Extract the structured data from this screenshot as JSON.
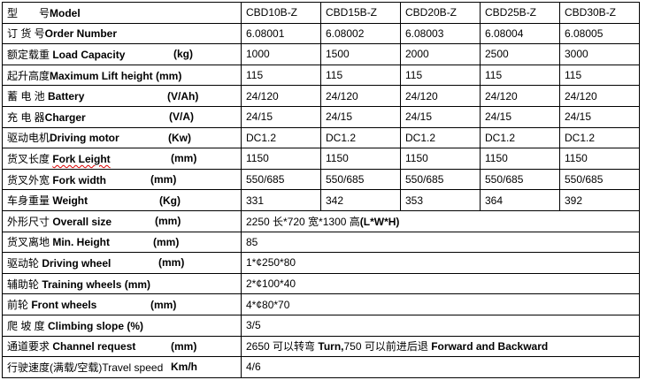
{
  "models": [
    "CBD10B-Z",
    "CBD15B-Z",
    "CBD20B-Z",
    "CBD25B-Z",
    "CBD30B-Z"
  ],
  "header": {
    "zh": "型　　号",
    "en": "Model"
  },
  "rows": [
    {
      "zh": "订 货 号",
      "en": "Order Number",
      "unit": "",
      "values": [
        "6.08001",
        "6.08002",
        "6.08003",
        "6.08004",
        "6.08005"
      ]
    },
    {
      "zh": "额定载重 ",
      "en": "Load Capacity",
      "unit": "(kg)",
      "values": [
        "1000",
        "1500",
        "2000",
        "2500",
        "3000"
      ]
    },
    {
      "zh": "起升高度",
      "en": "Maximum Lift height (mm)",
      "unit": "",
      "values": [
        "115",
        "115",
        "115",
        "115",
        "115"
      ]
    },
    {
      "zh": "蓄 电 池 ",
      "en": "Battery",
      "unit": "(V/Ah)",
      "values": [
        "24/120",
        "24/120",
        "24/120",
        "24/120",
        "24/120"
      ]
    },
    {
      "zh": "充 电 器",
      "en": "Charger",
      "unit": "(V/A)",
      "values": [
        "24/15",
        "24/15",
        "24/15",
        "24/15",
        "24/15"
      ]
    },
    {
      "zh": "驱动电机",
      "en": "Driving motor",
      "unit": "(Kw)",
      "values": [
        "DC1.2",
        "DC1.2",
        "DC1.2",
        "DC1.2",
        "DC1.2"
      ]
    },
    {
      "zh": "货叉长度 ",
      "en": "Fork Leight",
      "unit": "(mm)",
      "values": [
        "1150",
        "1150",
        "1150",
        "1150",
        "1150"
      ]
    },
    {
      "zh": "货叉外宽 ",
      "en": "Fork width",
      "unit": "(mm)",
      "values": [
        "550/685",
        "550/685",
        "550/685",
        "550/685",
        "550/685"
      ]
    },
    {
      "zh": "车身重量 ",
      "en": "Weight",
      "unit": "(Kg)",
      "values": [
        "331",
        "342",
        "353",
        "364",
        "392"
      ]
    },
    {
      "zh": "外形尺寸 ",
      "en": "Overall size",
      "unit": "(mm)",
      "merged": {
        "pre": "2250 长*720 宽*1300 高",
        "bold": "(L*W*H)"
      }
    },
    {
      "zh": "货叉离地 ",
      "en": "Min. Height",
      "unit": "(mm)",
      "merged": {
        "pre": "85",
        "bold": ""
      }
    },
    {
      "zh": "驱动轮  ",
      "en": "Driving wheel",
      "unit": "(mm)",
      "merged": {
        "pre": "1*¢250*80",
        "bold": ""
      }
    },
    {
      "zh": "辅助轮 ",
      "en": "Training wheels (mm)",
      "unit": "",
      "merged": {
        "pre": "2*¢100*40",
        "bold": ""
      }
    },
    {
      "zh": "前轮 ",
      "en": "Front wheels",
      "unit": "(mm)",
      "merged": {
        "pre": "4*¢80*70",
        "bold": ""
      }
    },
    {
      "zh": "爬  坡  度 ",
      "en": "Climbing slope (%)",
      "unit": "",
      "merged": {
        "pre": "3/5",
        "bold": ""
      }
    },
    {
      "zh": "通道要求 ",
      "en": "Channel request",
      "unit": "(mm)",
      "merged": {
        "pre": "2650 可以转弯 ",
        "bold": "Turn,",
        "mid": "750 可以前进后退 ",
        "bold2": "Forward and Backward"
      }
    },
    {
      "zh": "行驶速度(满载/空载)",
      "en": "Travel speed",
      "en_plain": true,
      "unit": "Km/h",
      "merged": {
        "pre": " 4/6",
        "bold": ""
      }
    }
  ]
}
